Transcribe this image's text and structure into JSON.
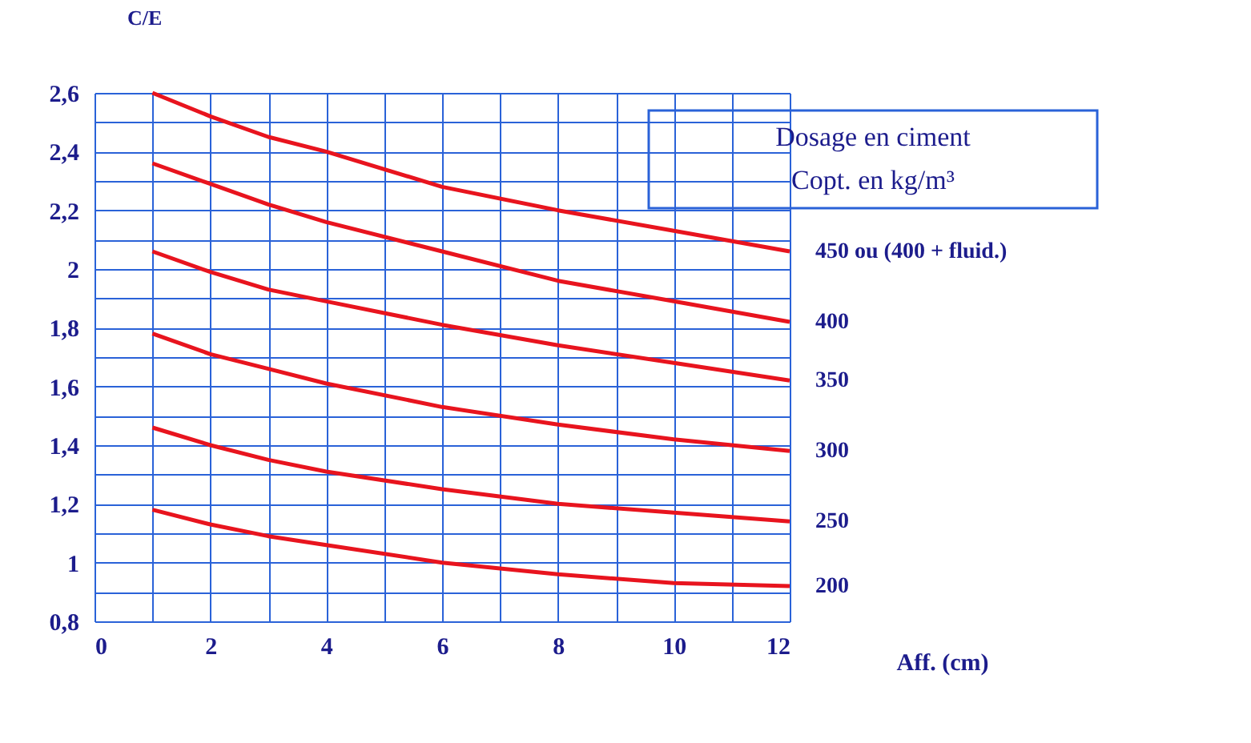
{
  "chart_data": {
    "type": "line",
    "ylabel": "C/E",
    "xlabel": "Aff. (cm)",
    "x": [
      1,
      2,
      3,
      4,
      6,
      8,
      10,
      12
    ],
    "series": [
      {
        "name": "450 ou (400 + fluid.)",
        "color": "#e8141e",
        "values": [
          2.6,
          2.52,
          2.45,
          2.4,
          2.28,
          2.2,
          2.13,
          2.06
        ]
      },
      {
        "name": "400",
        "color": "#e8141e",
        "values": [
          2.36,
          2.29,
          2.22,
          2.16,
          2.06,
          1.96,
          1.89,
          1.82
        ]
      },
      {
        "name": "350",
        "color": "#e8141e",
        "values": [
          2.06,
          1.99,
          1.93,
          1.89,
          1.81,
          1.74,
          1.68,
          1.62
        ]
      },
      {
        "name": "300",
        "color": "#e8141e",
        "values": [
          1.78,
          1.71,
          1.66,
          1.61,
          1.53,
          1.47,
          1.42,
          1.38
        ]
      },
      {
        "name": "250",
        "color": "#e8141e",
        "values": [
          1.46,
          1.4,
          1.35,
          1.31,
          1.25,
          1.2,
          1.17,
          1.14
        ]
      },
      {
        "name": "200",
        "color": "#e8141e",
        "values": [
          1.18,
          1.13,
          1.09,
          1.06,
          1.0,
          0.96,
          0.93,
          0.92
        ]
      }
    ],
    "xlim": [
      0,
      12
    ],
    "ylim": [
      0.8,
      2.6
    ],
    "xticks": [
      0,
      {
        "value": 1,
        "label": null
      },
      2,
      {
        "value": 3,
        "label": null
      },
      4,
      {
        "value": 5,
        "label": null
      },
      6,
      {
        "value": 7,
        "label": null
      },
      8,
      {
        "value": 9,
        "label": null
      },
      10,
      {
        "value": 11,
        "label": null
      },
      12
    ],
    "yticks": [
      {
        "value": 0.8,
        "label": "0,8"
      },
      {
        "value": 0.9,
        "label": null
      },
      {
        "value": 1,
        "label": "1"
      },
      {
        "value": 1.1,
        "label": null
      },
      {
        "value": 1.2,
        "label": "1,2"
      },
      {
        "value": 1.3,
        "label": null
      },
      {
        "value": 1.4,
        "label": "1,4"
      },
      {
        "value": 1.5,
        "label": null
      },
      {
        "value": 1.6,
        "label": "1,6"
      },
      {
        "value": 1.7,
        "label": null
      },
      {
        "value": 1.8,
        "label": "1,8"
      },
      {
        "value": 1.9,
        "label": null
      },
      {
        "value": 2,
        "label": "2"
      },
      {
        "value": 2.1,
        "label": null
      },
      {
        "value": 2.2,
        "label": "2,2"
      },
      {
        "value": 2.3,
        "label": null
      },
      {
        "value": 2.4,
        "label": "2,4"
      },
      {
        "value": 2.5,
        "label": null
      },
      {
        "value": 2.6,
        "label": "2,6"
      }
    ],
    "annotations": [
      "Dosage en ciment",
      "Copt. en kg/m³"
    ],
    "grid": true,
    "legend": false,
    "marker": "none",
    "line_style": "solid"
  }
}
